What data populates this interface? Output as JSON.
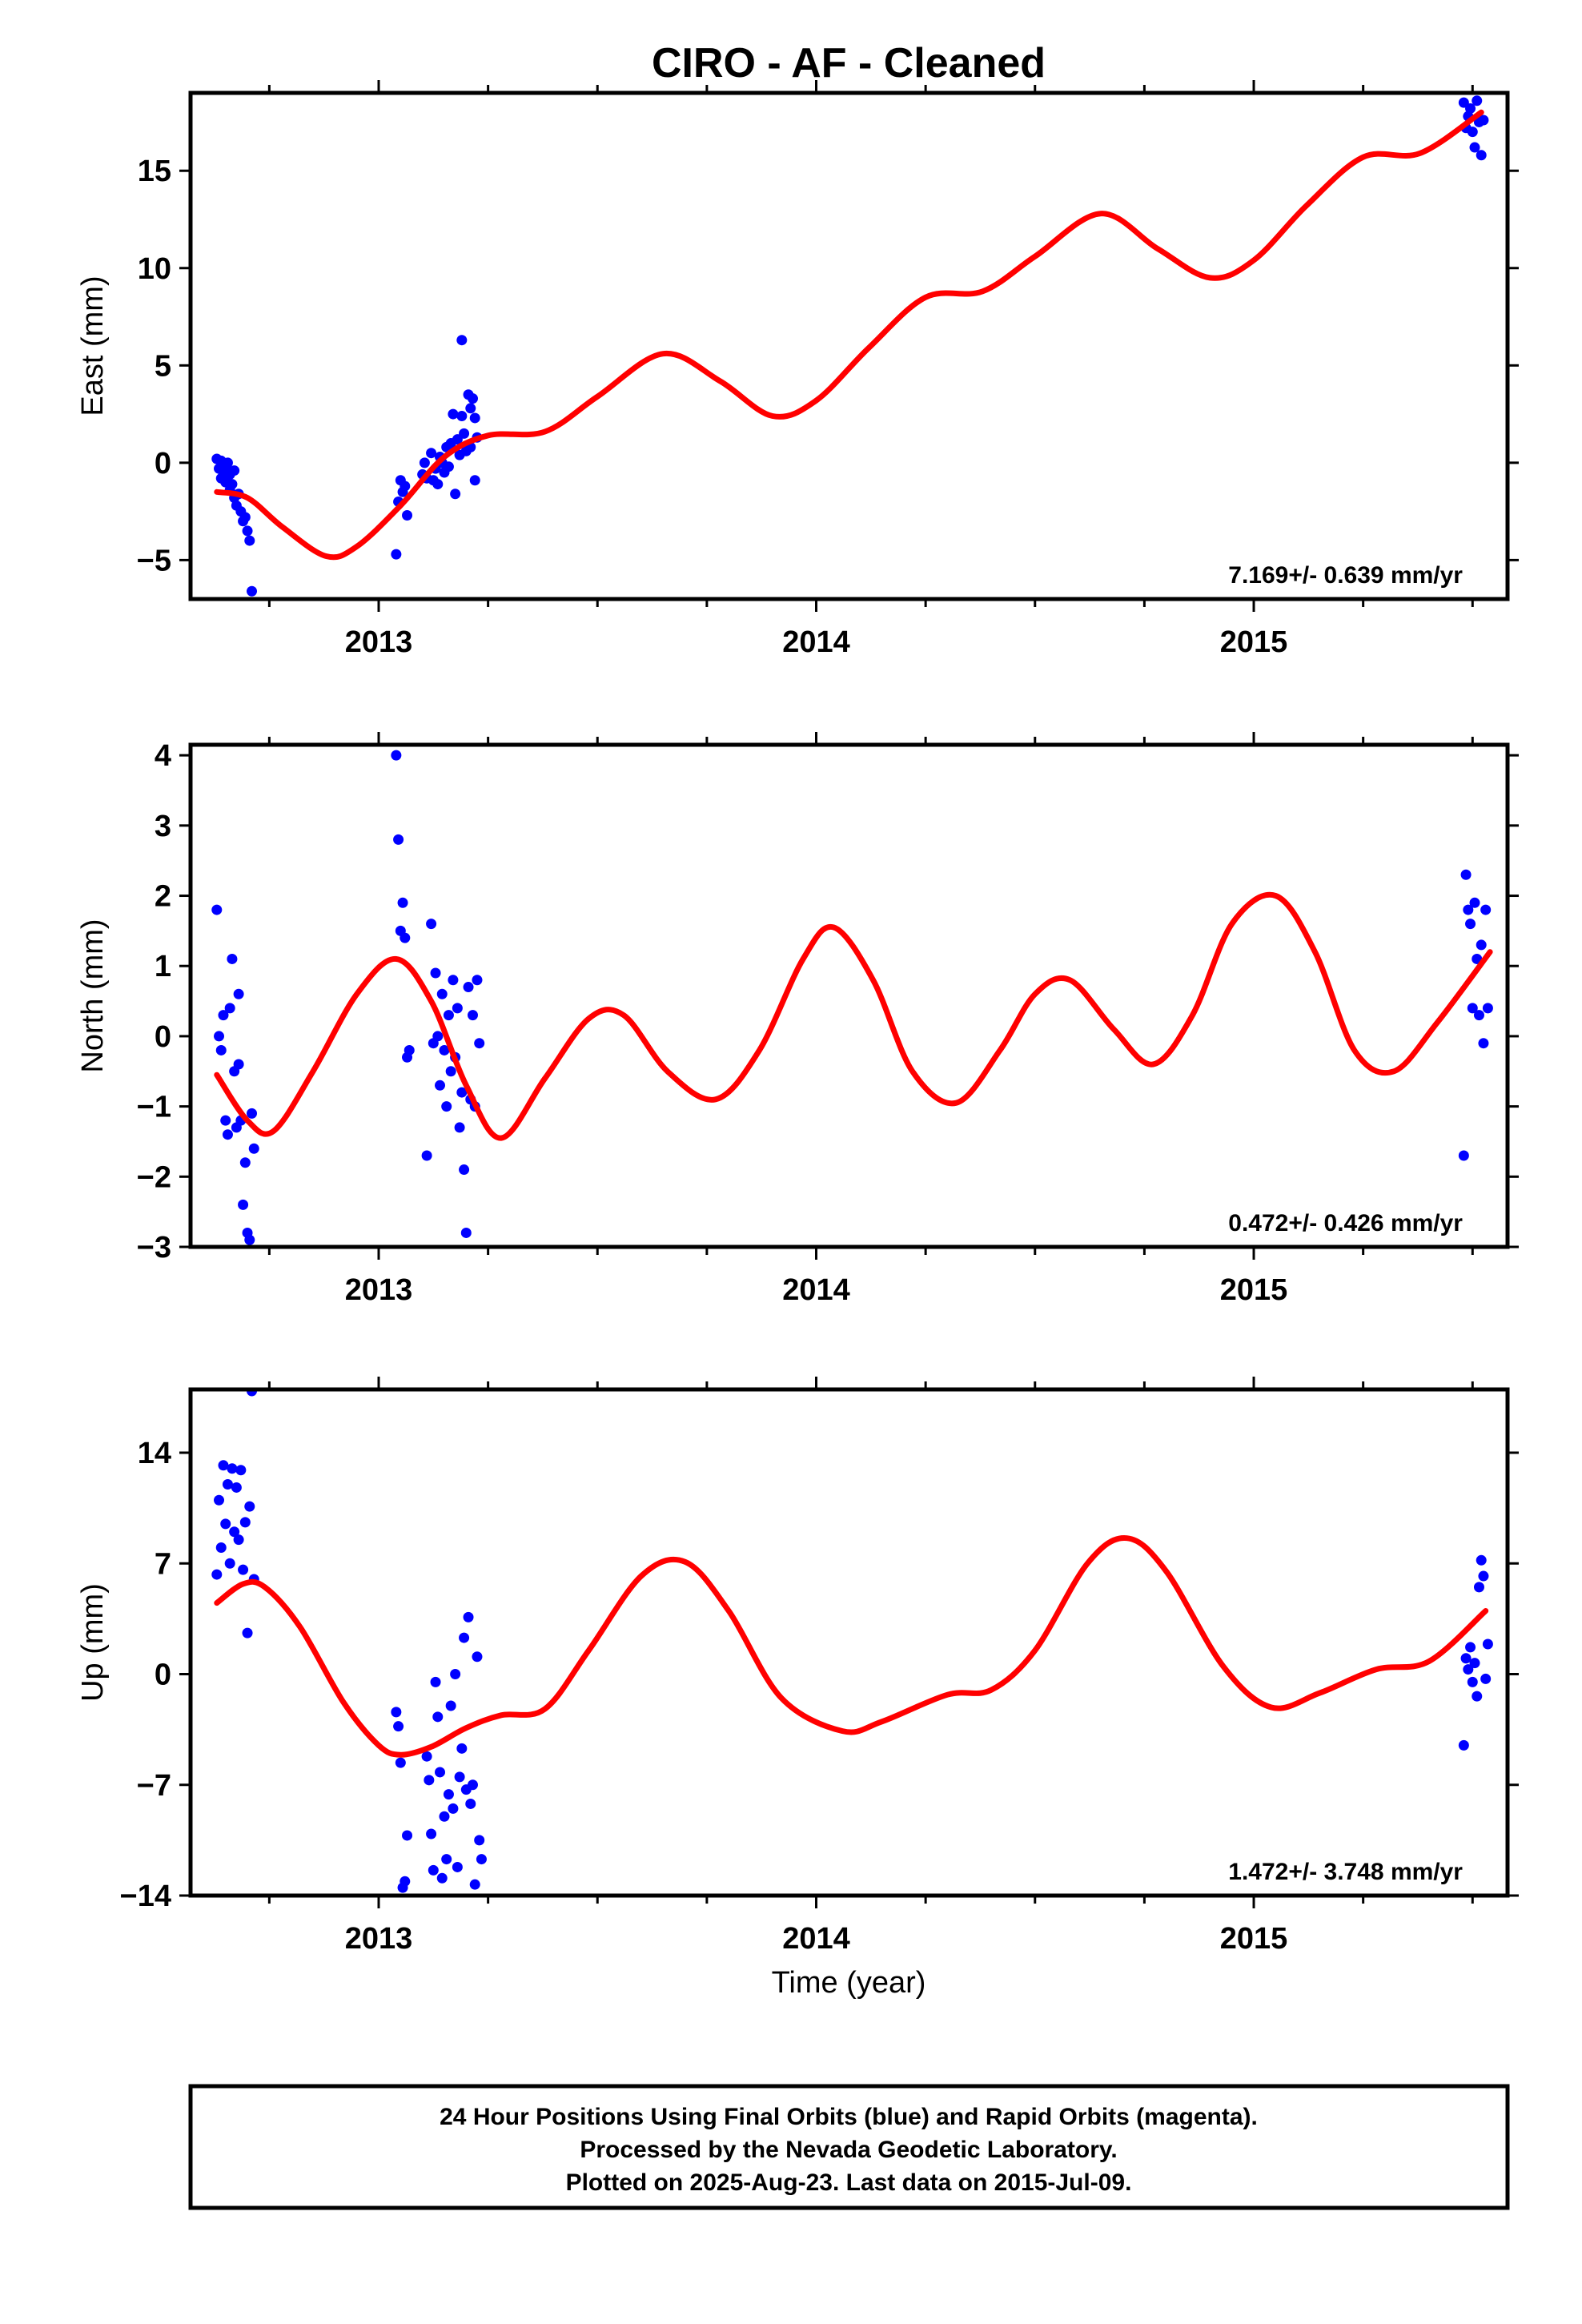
{
  "title": "CIRO  - AF - Cleaned",
  "x_axis_label": "Time (year)",
  "footer": {
    "lines": [
      "24 Hour Positions Using Final Orbits (blue) and Rapid Orbits (magenta).",
      "Processed by the Nevada Geodetic Laboratory.",
      "Plotted on 2025-Aug-23. Last data on 2015-Jul-09."
    ]
  },
  "colors": {
    "points": "#0000ff",
    "model": "#ff0000",
    "axes": "#000000"
  },
  "chart_data": [
    {
      "type": "scatter",
      "name": "east",
      "ylabel": "East (mm)",
      "xlim": [
        2012.57,
        2015.58
      ],
      "ylim": [
        -7,
        19
      ],
      "yticks": [
        -5,
        0,
        5,
        10,
        15
      ],
      "ytick_labels": [
        "−5",
        "0",
        "5",
        "10",
        "15"
      ],
      "xticks": [
        2013,
        2014,
        2015
      ],
      "xtick_labels": [
        "2013",
        "2014",
        "2015"
      ],
      "rate_text": "7.169+/- 0.639 mm/yr",
      "points": [
        [
          2012.63,
          0.2
        ],
        [
          2012.635,
          -0.3
        ],
        [
          2012.64,
          0.1
        ],
        [
          2012.64,
          -0.8
        ],
        [
          2012.645,
          -0.5
        ],
        [
          2012.65,
          -0.2
        ],
        [
          2012.65,
          -1.0
        ],
        [
          2012.655,
          0.0
        ],
        [
          2012.66,
          -0.6
        ],
        [
          2012.66,
          -1.4
        ],
        [
          2012.665,
          -1.1
        ],
        [
          2012.67,
          -0.4
        ],
        [
          2012.67,
          -1.8
        ],
        [
          2012.675,
          -2.2
        ],
        [
          2012.68,
          -1.6
        ],
        [
          2012.685,
          -2.5
        ],
        [
          2012.69,
          -3.0
        ],
        [
          2012.695,
          -2.8
        ],
        [
          2012.7,
          -3.5
        ],
        [
          2012.705,
          -4.0
        ],
        [
          2012.71,
          -6.6
        ],
        [
          2013.04,
          -4.7
        ],
        [
          2013.045,
          -2.0
        ],
        [
          2013.05,
          -0.9
        ],
        [
          2013.055,
          -1.5
        ],
        [
          2013.06,
          -1.2
        ],
        [
          2013.065,
          -2.7
        ],
        [
          2013.1,
          -0.6
        ],
        [
          2013.105,
          0.0
        ],
        [
          2013.11,
          -0.8
        ],
        [
          2013.12,
          0.5
        ],
        [
          2013.125,
          -0.9
        ],
        [
          2013.13,
          -0.3
        ],
        [
          2013.135,
          -1.1
        ],
        [
          2013.14,
          0.3
        ],
        [
          2013.145,
          0.0
        ],
        [
          2013.15,
          -0.5
        ],
        [
          2013.155,
          0.8
        ],
        [
          2013.16,
          -0.2
        ],
        [
          2013.165,
          1.0
        ],
        [
          2013.17,
          2.5
        ],
        [
          2013.175,
          -1.6
        ],
        [
          2013.18,
          1.2
        ],
        [
          2013.185,
          0.4
        ],
        [
          2013.19,
          2.4
        ],
        [
          2013.19,
          6.3
        ],
        [
          2013.195,
          1.5
        ],
        [
          2013.2,
          0.6
        ],
        [
          2013.205,
          3.5
        ],
        [
          2013.21,
          2.8
        ],
        [
          2013.21,
          0.8
        ],
        [
          2013.215,
          3.3
        ],
        [
          2013.22,
          2.3
        ],
        [
          2013.22,
          -0.9
        ],
        [
          2013.225,
          1.3
        ],
        [
          2015.48,
          18.5
        ],
        [
          2015.485,
          17.2
        ],
        [
          2015.49,
          17.8
        ],
        [
          2015.495,
          18.2
        ],
        [
          2015.5,
          17.0
        ],
        [
          2015.505,
          16.2
        ],
        [
          2015.51,
          18.6
        ],
        [
          2015.515,
          17.5
        ],
        [
          2015.52,
          15.8
        ],
        [
          2015.525,
          17.6
        ]
      ],
      "model_curve": [
        [
          2012.63,
          -1.5
        ],
        [
          2012.7,
          -1.8
        ],
        [
          2012.78,
          -3.3
        ],
        [
          2012.88,
          -4.8
        ],
        [
          2012.95,
          -4.3
        ],
        [
          2013.05,
          -2.2
        ],
        [
          2013.15,
          0.3
        ],
        [
          2013.25,
          1.4
        ],
        [
          2013.38,
          1.6
        ],
        [
          2013.5,
          3.4
        ],
        [
          2013.65,
          5.6
        ],
        [
          2013.78,
          4.2
        ],
        [
          2013.9,
          2.4
        ],
        [
          2014.0,
          3.2
        ],
        [
          2014.12,
          5.9
        ],
        [
          2014.25,
          8.5
        ],
        [
          2014.38,
          8.8
        ],
        [
          2014.5,
          10.6
        ],
        [
          2014.65,
          12.8
        ],
        [
          2014.78,
          11.0
        ],
        [
          2014.9,
          9.5
        ],
        [
          2015.0,
          10.4
        ],
        [
          2015.12,
          13.2
        ],
        [
          2015.25,
          15.7
        ],
        [
          2015.38,
          15.9
        ],
        [
          2015.52,
          18.0
        ]
      ]
    },
    {
      "type": "scatter",
      "name": "north",
      "ylabel": "North (mm)",
      "xlim": [
        2012.57,
        2015.58
      ],
      "ylim": [
        -3,
        4.15
      ],
      "yticks": [
        -3,
        -2,
        -1,
        0,
        1,
        2,
        3,
        4
      ],
      "ytick_labels": [
        "−3",
        "−2",
        "−1",
        "0",
        "1",
        "2",
        "3",
        "4"
      ],
      "xticks": [
        2013,
        2014,
        2015
      ],
      "xtick_labels": [
        "2013",
        "2014",
        "2015"
      ],
      "rate_text": "0.472+/- 0.426 mm/yr",
      "points": [
        [
          2012.63,
          1.8
        ],
        [
          2012.635,
          0.0
        ],
        [
          2012.64,
          -0.2
        ],
        [
          2012.645,
          0.3
        ],
        [
          2012.65,
          -1.2
        ],
        [
          2012.655,
          -1.4
        ],
        [
          2012.66,
          0.4
        ],
        [
          2012.665,
          1.1
        ],
        [
          2012.67,
          -0.5
        ],
        [
          2012.675,
          -1.3
        ],
        [
          2012.68,
          0.6
        ],
        [
          2012.68,
          -0.4
        ],
        [
          2012.685,
          -1.2
        ],
        [
          2012.69,
          -2.4
        ],
        [
          2012.695,
          -1.8
        ],
        [
          2012.7,
          -2.8
        ],
        [
          2012.705,
          -2.9
        ],
        [
          2012.71,
          -1.1
        ],
        [
          2012.715,
          -1.6
        ],
        [
          2013.04,
          4.0
        ],
        [
          2013.045,
          2.8
        ],
        [
          2013.05,
          1.5
        ],
        [
          2013.055,
          1.9
        ],
        [
          2013.06,
          1.4
        ],
        [
          2013.065,
          -0.3
        ],
        [
          2013.07,
          -0.2
        ],
        [
          2013.11,
          -1.7
        ],
        [
          2013.12,
          1.6
        ],
        [
          2013.125,
          -0.1
        ],
        [
          2013.13,
          0.9
        ],
        [
          2013.135,
          0.0
        ],
        [
          2013.14,
          -0.7
        ],
        [
          2013.145,
          0.6
        ],
        [
          2013.15,
          -0.2
        ],
        [
          2013.155,
          -1.0
        ],
        [
          2013.16,
          0.3
        ],
        [
          2013.165,
          -0.5
        ],
        [
          2013.17,
          0.8
        ],
        [
          2013.175,
          -0.3
        ],
        [
          2013.18,
          0.4
        ],
        [
          2013.185,
          -1.3
        ],
        [
          2013.19,
          -0.8
        ],
        [
          2013.195,
          -1.9
        ],
        [
          2013.2,
          -2.8
        ],
        [
          2013.205,
          0.7
        ],
        [
          2013.21,
          -0.9
        ],
        [
          2013.215,
          0.3
        ],
        [
          2013.22,
          -1.0
        ],
        [
          2013.225,
          0.8
        ],
        [
          2013.23,
          -0.1
        ],
        [
          2015.48,
          -1.7
        ],
        [
          2015.485,
          2.3
        ],
        [
          2015.49,
          1.8
        ],
        [
          2015.495,
          1.6
        ],
        [
          2015.5,
          0.4
        ],
        [
          2015.505,
          1.9
        ],
        [
          2015.51,
          1.1
        ],
        [
          2015.515,
          0.3
        ],
        [
          2015.52,
          1.3
        ],
        [
          2015.525,
          -0.1
        ],
        [
          2015.53,
          1.8
        ],
        [
          2015.535,
          0.4
        ]
      ],
      "model_curve": [
        [
          2012.63,
          -0.55
        ],
        [
          2012.7,
          -1.2
        ],
        [
          2012.76,
          -1.35
        ],
        [
          2012.85,
          -0.5
        ],
        [
          2012.95,
          0.6
        ],
        [
          2013.04,
          1.1
        ],
        [
          2013.12,
          0.5
        ],
        [
          2013.2,
          -0.7
        ],
        [
          2013.28,
          -1.45
        ],
        [
          2013.38,
          -0.6
        ],
        [
          2013.48,
          0.25
        ],
        [
          2013.56,
          0.3
        ],
        [
          2013.66,
          -0.5
        ],
        [
          2013.77,
          -0.9
        ],
        [
          2013.87,
          -0.2
        ],
        [
          2013.97,
          1.1
        ],
        [
          2014.04,
          1.55
        ],
        [
          2014.13,
          0.8
        ],
        [
          2014.22,
          -0.5
        ],
        [
          2014.32,
          -0.95
        ],
        [
          2014.42,
          -0.2
        ],
        [
          2014.5,
          0.6
        ],
        [
          2014.58,
          0.8
        ],
        [
          2014.68,
          0.1
        ],
        [
          2014.77,
          -0.4
        ],
        [
          2014.86,
          0.3
        ],
        [
          2014.95,
          1.6
        ],
        [
          2015.05,
          2.0
        ],
        [
          2015.14,
          1.2
        ],
        [
          2015.23,
          -0.2
        ],
        [
          2015.32,
          -0.5
        ],
        [
          2015.42,
          0.2
        ],
        [
          2015.54,
          1.2
        ]
      ]
    },
    {
      "type": "scatter",
      "name": "up",
      "ylabel": "Up (mm)",
      "xlim": [
        2012.57,
        2015.58
      ],
      "ylim": [
        -14,
        18
      ],
      "yticks": [
        -14,
        -7,
        0,
        7,
        14
      ],
      "ytick_labels": [
        "−14",
        "−7",
        "0",
        "7",
        "14"
      ],
      "xticks": [
        2013,
        2014,
        2015
      ],
      "xtick_labels": [
        "2013",
        "2014",
        "2015"
      ],
      "rate_text": "1.472+/- 3.748 mm/yr",
      "points": [
        [
          2012.63,
          6.3
        ],
        [
          2012.635,
          11.0
        ],
        [
          2012.64,
          8.0
        ],
        [
          2012.645,
          13.2
        ],
        [
          2012.65,
          9.5
        ],
        [
          2012.655,
          12.0
        ],
        [
          2012.66,
          7.0
        ],
        [
          2012.665,
          13.0
        ],
        [
          2012.67,
          9.0
        ],
        [
          2012.675,
          11.8
        ],
        [
          2012.68,
          8.5
        ],
        [
          2012.685,
          12.9
        ],
        [
          2012.69,
          6.6
        ],
        [
          2012.695,
          9.6
        ],
        [
          2012.7,
          2.6
        ],
        [
          2012.705,
          10.6
        ],
        [
          2012.71,
          17.9
        ],
        [
          2012.715,
          6.0
        ],
        [
          2013.04,
          -2.4
        ],
        [
          2013.045,
          -3.3
        ],
        [
          2013.05,
          -5.6
        ],
        [
          2013.055,
          -13.5
        ],
        [
          2013.06,
          -13.1
        ],
        [
          2013.065,
          -10.2
        ],
        [
          2013.11,
          -5.2
        ],
        [
          2013.115,
          -6.7
        ],
        [
          2013.12,
          -10.1
        ],
        [
          2013.125,
          -12.4
        ],
        [
          2013.13,
          -0.5
        ],
        [
          2013.135,
          -2.7
        ],
        [
          2013.14,
          -6.2
        ],
        [
          2013.145,
          -12.9
        ],
        [
          2013.15,
          -9.0
        ],
        [
          2013.155,
          -11.7
        ],
        [
          2013.16,
          -7.6
        ],
        [
          2013.165,
          -2.0
        ],
        [
          2013.17,
          -8.5
        ],
        [
          2013.175,
          0.0
        ],
        [
          2013.18,
          -12.2
        ],
        [
          2013.185,
          -6.5
        ],
        [
          2013.19,
          -4.7
        ],
        [
          2013.195,
          2.3
        ],
        [
          2013.2,
          -7.3
        ],
        [
          2013.205,
          3.6
        ],
        [
          2013.21,
          -8.2
        ],
        [
          2013.215,
          -7.0
        ],
        [
          2013.22,
          -13.3
        ],
        [
          2013.225,
          1.1
        ],
        [
          2013.23,
          -10.5
        ],
        [
          2013.235,
          -11.7
        ],
        [
          2015.48,
          -4.5
        ],
        [
          2015.485,
          1.0
        ],
        [
          2015.49,
          0.3
        ],
        [
          2015.495,
          1.7
        ],
        [
          2015.5,
          -0.5
        ],
        [
          2015.505,
          0.7
        ],
        [
          2015.51,
          -1.4
        ],
        [
          2015.515,
          5.5
        ],
        [
          2015.52,
          7.2
        ],
        [
          2015.525,
          6.2
        ],
        [
          2015.53,
          -0.3
        ],
        [
          2015.535,
          1.9
        ]
      ],
      "model_curve": [
        [
          2012.63,
          4.5
        ],
        [
          2012.69,
          5.7
        ],
        [
          2012.74,
          5.5
        ],
        [
          2012.82,
          3.0
        ],
        [
          2012.92,
          -1.8
        ],
        [
          2013.0,
          -4.5
        ],
        [
          2013.05,
          -5.1
        ],
        [
          2013.12,
          -4.6
        ],
        [
          2013.2,
          -3.4
        ],
        [
          2013.28,
          -2.6
        ],
        [
          2013.38,
          -2.2
        ],
        [
          2013.48,
          1.5
        ],
        [
          2013.6,
          6.2
        ],
        [
          2013.7,
          7.1
        ],
        [
          2013.8,
          4.0
        ],
        [
          2013.92,
          -1.5
        ],
        [
          2014.06,
          -3.6
        ],
        [
          2014.15,
          -3.0
        ],
        [
          2014.3,
          -1.3
        ],
        [
          2014.4,
          -1.0
        ],
        [
          2014.5,
          1.5
        ],
        [
          2014.62,
          7.0
        ],
        [
          2014.71,
          8.6
        ],
        [
          2014.8,
          6.5
        ],
        [
          2014.93,
          0.5
        ],
        [
          2015.04,
          -2.1
        ],
        [
          2015.15,
          -1.2
        ],
        [
          2015.28,
          0.3
        ],
        [
          2015.4,
          0.8
        ],
        [
          2015.53,
          4.0
        ]
      ]
    }
  ]
}
